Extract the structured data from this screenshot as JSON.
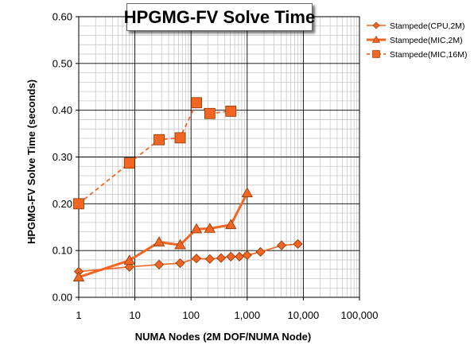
{
  "chart_data": {
    "type": "line",
    "title": "HPGMG-FV Solve Time",
    "xlabel": "NUMA Nodes (2M DOF/NUMA Node)",
    "ylabel": "HPGMG-FV Solve Time (seconds)",
    "x_scale": "log",
    "xlim": [
      1,
      100000
    ],
    "ylim": [
      0,
      0.6
    ],
    "x_ticks": [
      "1",
      "10",
      "100",
      "1,000",
      "10,000",
      "100,000"
    ],
    "y_ticks": [
      "0.00",
      "0.10",
      "0.20",
      "0.30",
      "0.40",
      "0.50",
      "0.60"
    ],
    "grid": true,
    "legend_position": "right",
    "series": [
      {
        "name": "Stampede(CPU,2M)",
        "marker": "diamond",
        "line": "solid-thin",
        "color": "#f26522",
        "x": [
          1,
          8,
          27,
          64,
          125,
          216,
          343,
          512,
          729,
          1000,
          1728,
          4096,
          8000
        ],
        "y": [
          0.055,
          0.065,
          0.07,
          0.073,
          0.083,
          0.082,
          0.084,
          0.087,
          0.087,
          0.09,
          0.097,
          0.111,
          0.114
        ]
      },
      {
        "name": "Stampede(MIC,2M)",
        "marker": "triangle",
        "line": "solid-thick",
        "color": "#f26522",
        "x": [
          1,
          8,
          27,
          64,
          125,
          216,
          512,
          1000
        ],
        "y": [
          0.043,
          0.079,
          0.118,
          0.112,
          0.146,
          0.147,
          0.155,
          0.223
        ]
      },
      {
        "name": "Stampede(MIC,16M)",
        "marker": "square",
        "line": "dashed",
        "color": "#f26522",
        "x": [
          1,
          8,
          27,
          64,
          125,
          216,
          512
        ],
        "y": [
          0.2,
          0.287,
          0.337,
          0.341,
          0.416,
          0.393,
          0.398
        ]
      }
    ]
  }
}
